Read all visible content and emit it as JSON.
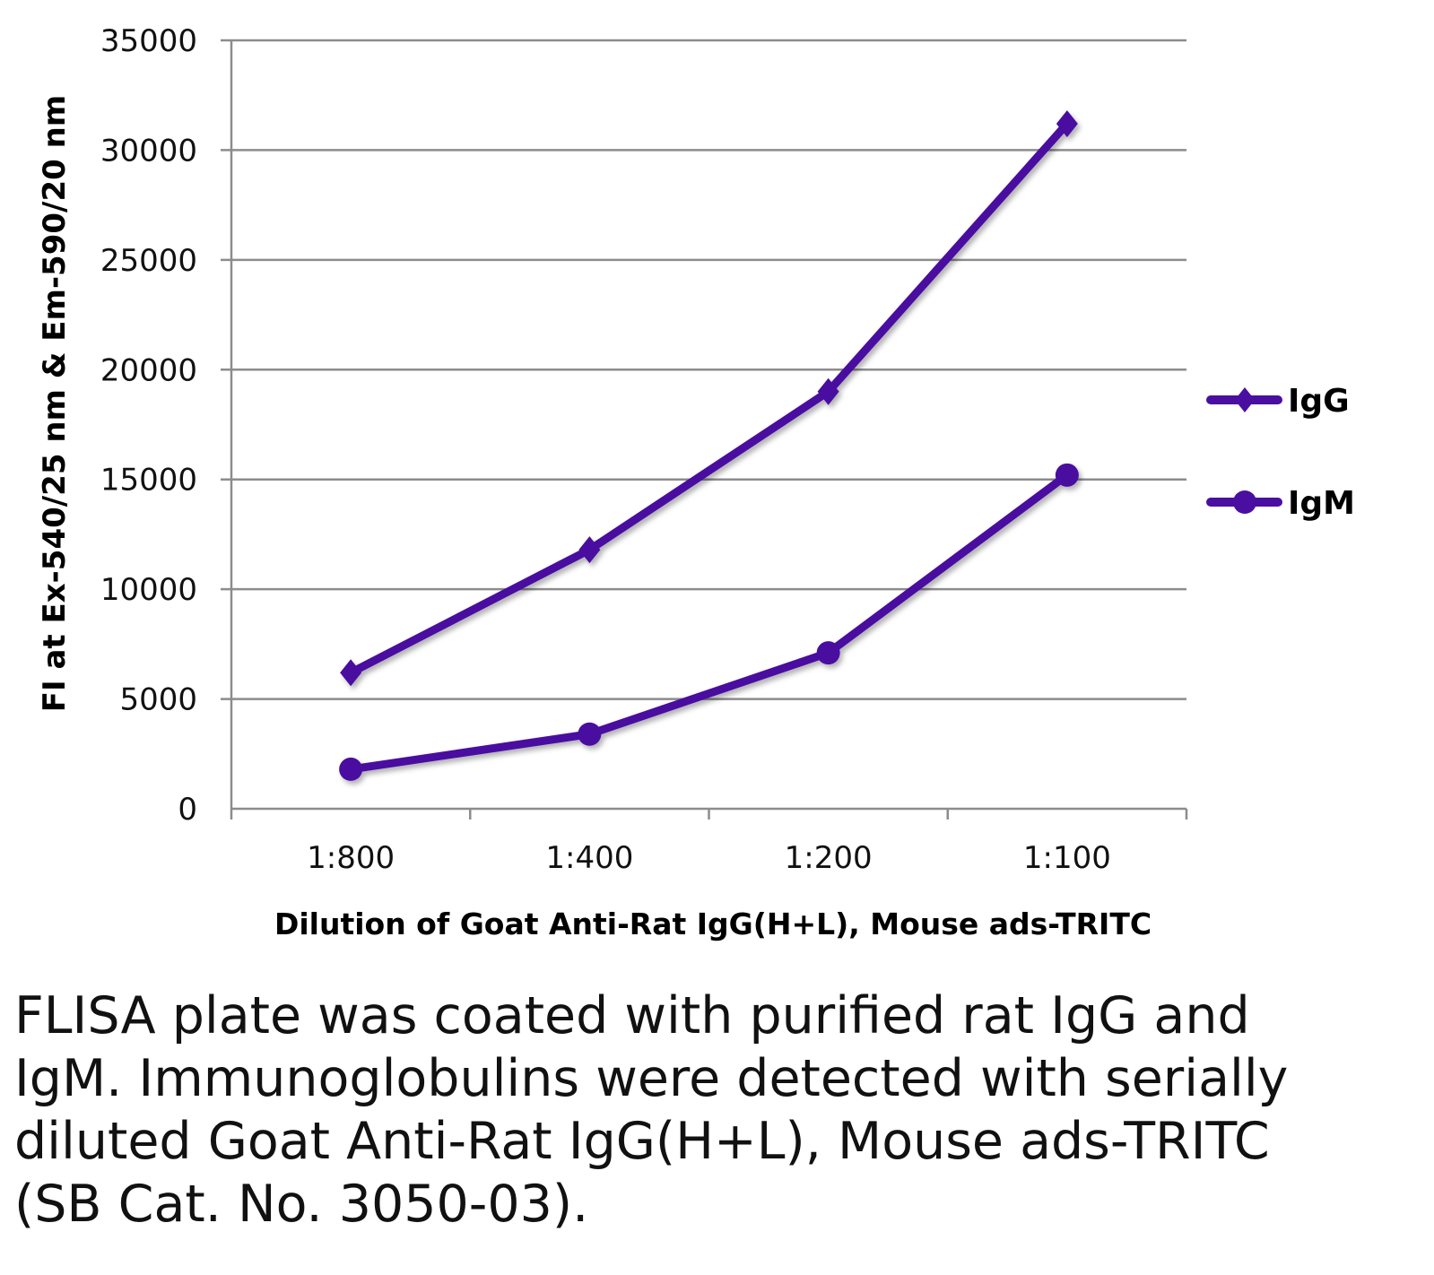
{
  "chart_data": {
    "type": "line",
    "title": "",
    "xlabel": "Dilution of Goat Anti-Rat IgG(H+L), Mouse ads-TRITC",
    "ylabel": "FI at Ex-540/25 nm & Em-590/20 nm",
    "categories": [
      "1:800",
      "1:400",
      "1:200",
      "1:100"
    ],
    "ylim": [
      0,
      35000
    ],
    "yticks": [
      0,
      5000,
      10000,
      15000,
      20000,
      25000,
      30000,
      35000
    ],
    "grid": true,
    "legend_position": "right",
    "series": [
      {
        "name": "IgG",
        "marker": "diamond",
        "color": "#4a0fa0",
        "values": [
          6200,
          11800,
          19000,
          31200
        ]
      },
      {
        "name": "IgM",
        "marker": "circle",
        "color": "#4a0fa0",
        "values": [
          1800,
          3400,
          7100,
          15200
        ]
      }
    ]
  },
  "caption": "FLISA plate was coated with purified rat IgG and IgM.  Immunoglobulins were detected with serially diluted Goat Anti-Rat IgG(H+L), Mouse ads-TRITC (SB Cat. No. 3050-03)."
}
